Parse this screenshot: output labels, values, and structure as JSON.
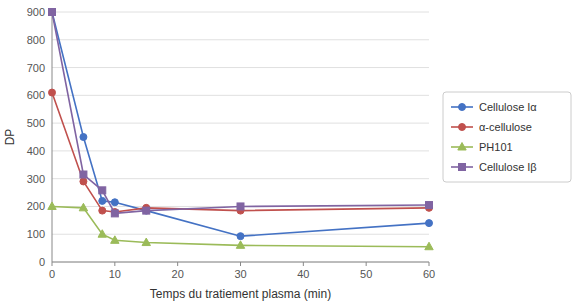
{
  "chart_data": {
    "type": "line",
    "xlabel": "Temps du tratiement plasma (min)",
    "ylabel": "DP",
    "x": [
      0,
      5,
      8,
      10,
      15,
      30,
      60
    ],
    "xlim": [
      0,
      60
    ],
    "ylim": [
      0,
      900
    ],
    "xticks": [
      0,
      10,
      20,
      30,
      40,
      50,
      60
    ],
    "yticks": [
      0,
      100,
      200,
      300,
      400,
      500,
      600,
      700,
      800,
      900
    ],
    "grid": "y",
    "legend": "right",
    "series": [
      {
        "name": "Cellulose Iα",
        "color": "#4472C4",
        "marker": "circle",
        "values": [
          900,
          450,
          220,
          215,
          185,
          93,
          140
        ]
      },
      {
        "name": "α-cellulose",
        "color": "#C0504D",
        "marker": "circle",
        "values": [
          610,
          290,
          185,
          180,
          195,
          185,
          195
        ]
      },
      {
        "name": "PH101",
        "color": "#9BBB59",
        "marker": "triangle",
        "values": [
          200,
          195,
          100,
          78,
          70,
          60,
          55
        ]
      },
      {
        "name": "Cellulose Iβ",
        "color": "#8064A2",
        "marker": "square",
        "values": [
          900,
          315,
          258,
          175,
          185,
          200,
          205
        ]
      }
    ]
  }
}
